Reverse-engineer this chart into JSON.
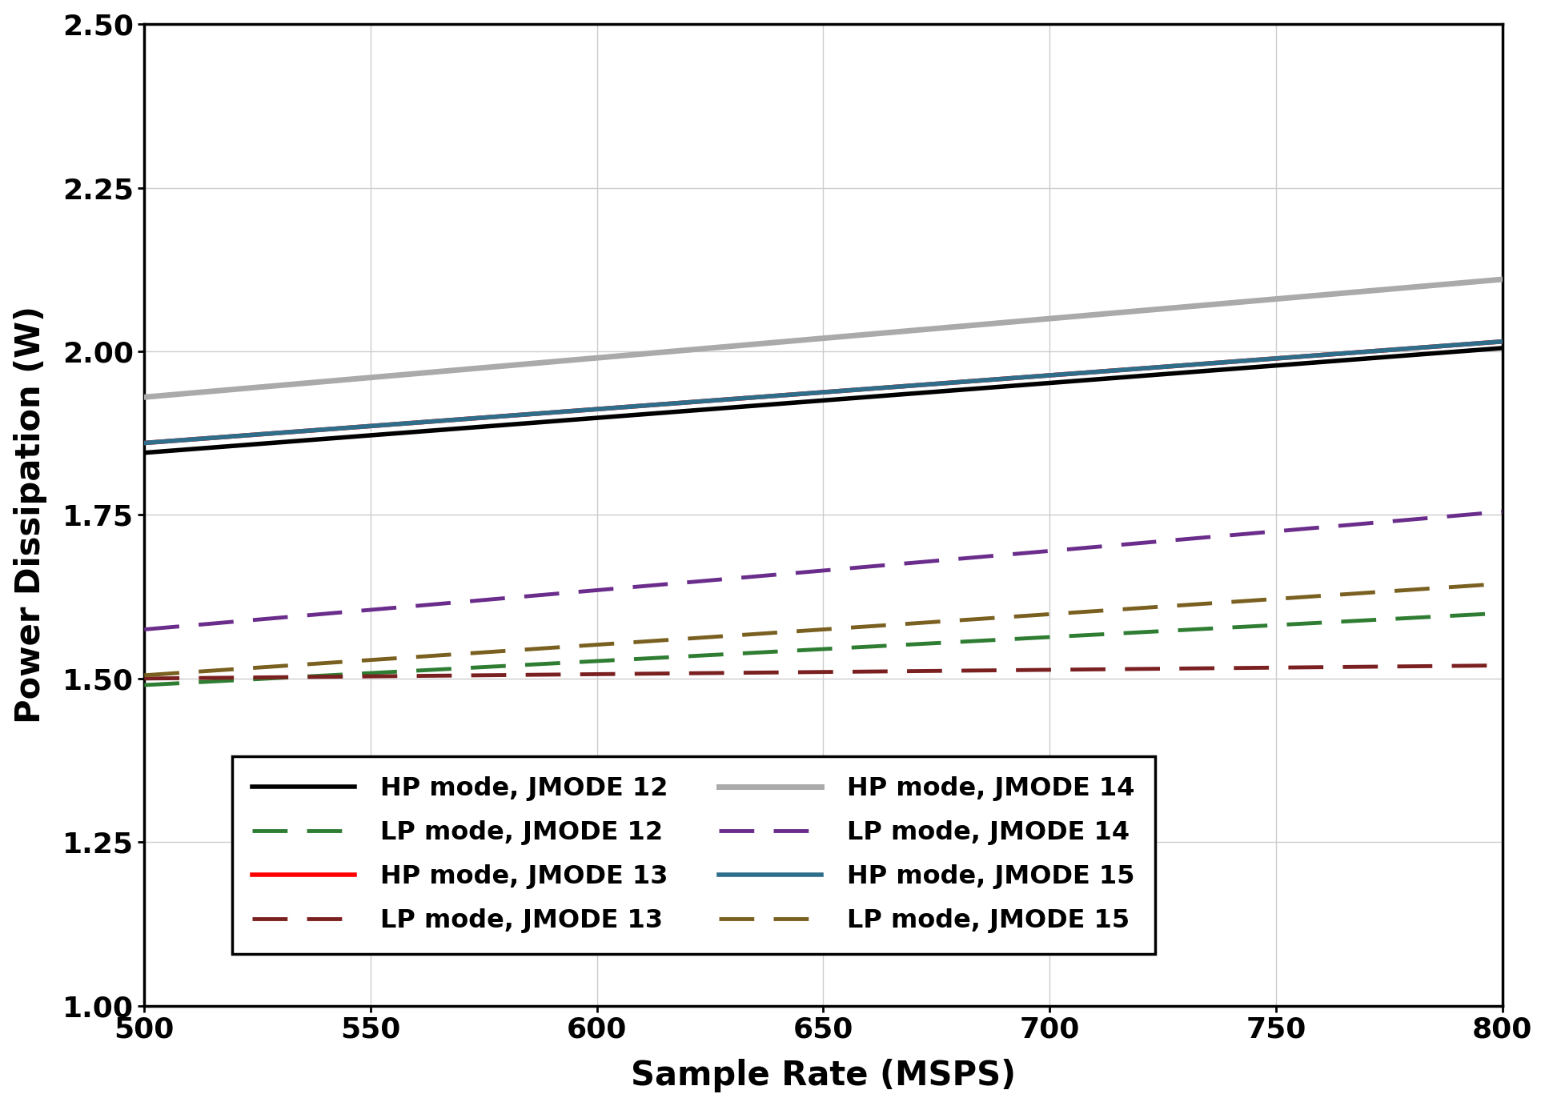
{
  "x_min": 500,
  "x_max": 800,
  "y_min": 1.0,
  "y_max": 2.5,
  "xlabel": "Sample Rate (MSPS)",
  "ylabel": "Power Dissipation (W)",
  "xticks": [
    500,
    550,
    600,
    650,
    700,
    750,
    800
  ],
  "yticks": [
    1.0,
    1.25,
    1.5,
    1.75,
    2.0,
    2.25,
    2.5
  ],
  "hp_lines": [
    {
      "label": "HP mode, JMODE 12",
      "color": "#000000",
      "linewidth": 4.0,
      "x": [
        500,
        800
      ],
      "y": [
        1.845,
        2.005
      ]
    },
    {
      "label": "HP mode, JMODE 13",
      "color": "#ff0000",
      "linewidth": 4.0,
      "x": [
        500,
        800
      ],
      "y": [
        1.86,
        2.015
      ]
    },
    {
      "label": "HP mode, JMODE 14",
      "color": "#aaaaaa",
      "linewidth": 5.0,
      "x": [
        500,
        800
      ],
      "y": [
        1.93,
        2.11
      ]
    },
    {
      "label": "HP mode, JMODE 15",
      "color": "#2e6e8a",
      "linewidth": 4.0,
      "x": [
        500,
        800
      ],
      "y": [
        1.86,
        2.015
      ]
    }
  ],
  "lp_lines": [
    {
      "label": "LP mode, JMODE 12",
      "color": "#2e7d32",
      "linewidth": 3.5,
      "x": [
        500,
        800
      ],
      "y": [
        1.49,
        1.6
      ]
    },
    {
      "label": "LP mode, JMODE 13",
      "color": "#7b2020",
      "linewidth": 3.5,
      "x": [
        500,
        800
      ],
      "y": [
        1.5,
        1.52
      ]
    },
    {
      "label": "LP mode, JMODE 14",
      "color": "#6b2d8b",
      "linewidth": 3.5,
      "x": [
        500,
        800
      ],
      "y": [
        1.575,
        1.755
      ]
    },
    {
      "label": "LP mode, JMODE 15",
      "color": "#7a6020",
      "linewidth": 3.5,
      "x": [
        500,
        800
      ],
      "y": [
        1.505,
        1.645
      ]
    }
  ],
  "figsize": [
    19.31,
    13.82
  ],
  "dpi": 100,
  "tick_fontsize": 26,
  "label_fontsize": 30,
  "legend_fontsize": 23
}
